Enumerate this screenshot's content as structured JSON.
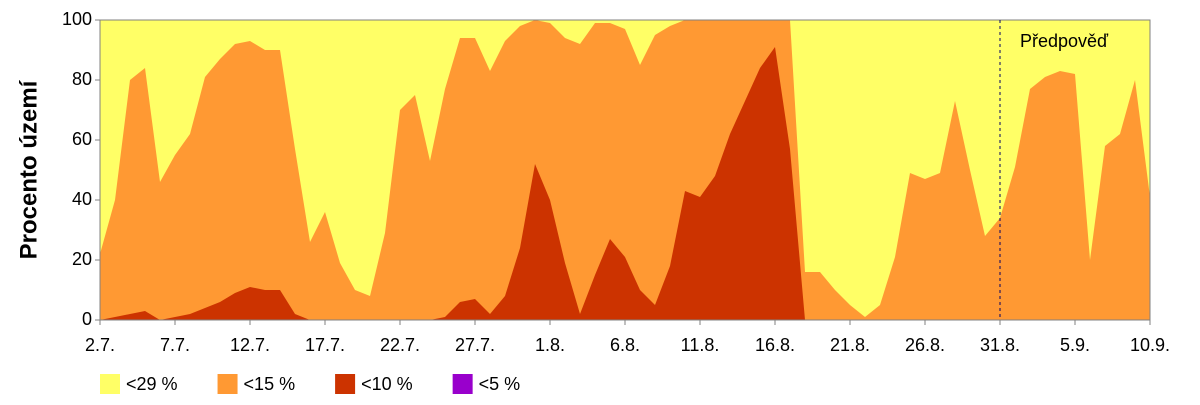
{
  "chart_data": {
    "type": "area",
    "y_label": "Procento území",
    "categories": [
      "2.7.",
      null,
      null,
      null,
      null,
      "7.7.",
      null,
      null,
      null,
      null,
      "12.7.",
      null,
      null,
      null,
      null,
      "17.7.",
      null,
      null,
      null,
      null,
      "22.7.",
      null,
      null,
      null,
      null,
      "27.7.",
      null,
      null,
      null,
      null,
      "1.8.",
      null,
      null,
      null,
      null,
      "6.8.",
      null,
      null,
      null,
      null,
      "11.8.",
      null,
      null,
      null,
      null,
      "16.8.",
      null,
      null,
      null,
      null,
      "21.8.",
      null,
      null,
      null,
      null,
      "26.8.",
      null,
      null,
      null,
      null,
      "31.8.",
      null,
      null,
      null,
      null,
      "5.9.",
      null,
      null,
      null,
      null,
      "10.9."
    ],
    "series": [
      {
        "name": "<29 %",
        "color": "#ffff66",
        "values": [
          100,
          100,
          100,
          100,
          100,
          100,
          100,
          100,
          100,
          100,
          100,
          100,
          100,
          100,
          100,
          100,
          100,
          100,
          100,
          100,
          100,
          100,
          100,
          100,
          100,
          100,
          100,
          100,
          100,
          100,
          100,
          100,
          100,
          100,
          100,
          100,
          100,
          100,
          100,
          100,
          100,
          100,
          100,
          100,
          100,
          100,
          100,
          100,
          100,
          100,
          100,
          100,
          100,
          100,
          100,
          100,
          100,
          100,
          100,
          100,
          100,
          100,
          100,
          100,
          100,
          100,
          100,
          100,
          100,
          100,
          100
        ]
      },
      {
        "name": "<15 %",
        "color": "#ff9933",
        "values": [
          22,
          40,
          80,
          84,
          46,
          55,
          62,
          81,
          87,
          92,
          93,
          90,
          90,
          57,
          26,
          36,
          19,
          10,
          8,
          29,
          70,
          75,
          53,
          77,
          94,
          94,
          83,
          93,
          98,
          100,
          99,
          94,
          92,
          99,
          99,
          97,
          85,
          95,
          98,
          100,
          100,
          100,
          100,
          100,
          100,
          100,
          100,
          16,
          16,
          10,
          5,
          1,
          5,
          21,
          49,
          47,
          49,
          73,
          50,
          28,
          34,
          51,
          77,
          81,
          83,
          82,
          20,
          58,
          62,
          80,
          41
        ]
      },
      {
        "name": "<10 %",
        "color": "#cc3300",
        "values": [
          0,
          1,
          2,
          3,
          0,
          1,
          2,
          4,
          6,
          9,
          11,
          10,
          10,
          2,
          0,
          0,
          0,
          0,
          0,
          0,
          0,
          0,
          0,
          1,
          6,
          7,
          2,
          8,
          24,
          52,
          40,
          19,
          2,
          15,
          27,
          21,
          10,
          5,
          18,
          43,
          41,
          48,
          62,
          73,
          84,
          91,
          57,
          0,
          0,
          0,
          0,
          0,
          0,
          0,
          0,
          0,
          0,
          0,
          0,
          0,
          0,
          0,
          0,
          0,
          0,
          0,
          0,
          0,
          0,
          0,
          0
        ]
      },
      {
        "name": "<5 %",
        "color": "#9900cc",
        "values": [
          0,
          0,
          0,
          0,
          0,
          0,
          0,
          0,
          0,
          0,
          0,
          0,
          0,
          0,
          0,
          0,
          0,
          0,
          0,
          0,
          0,
          0,
          0,
          0,
          0,
          0,
          0,
          0,
          0,
          0,
          0,
          0,
          0,
          0,
          0,
          0,
          0,
          0,
          0,
          0,
          0,
          0,
          0,
          0,
          0,
          0,
          0,
          0,
          0,
          0,
          0,
          0,
          0,
          0,
          0,
          0,
          0,
          0,
          0,
          0,
          0,
          0,
          0,
          0,
          0,
          0,
          0,
          0,
          0,
          0,
          0
        ]
      }
    ],
    "ylim": [
      0,
      100
    ],
    "yticks": [
      0,
      20,
      40,
      60,
      80,
      100
    ],
    "annotation": {
      "text": "Předpověď",
      "x": "31.8."
    }
  }
}
